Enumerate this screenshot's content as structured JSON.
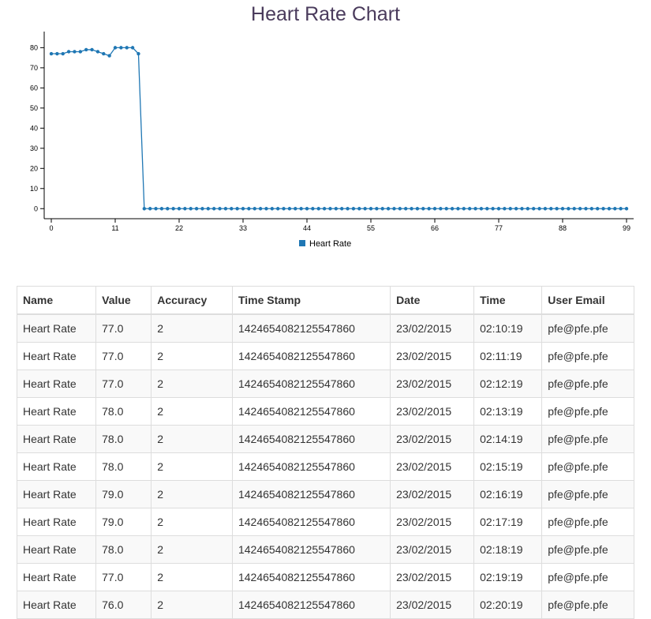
{
  "chart_data": {
    "type": "line",
    "title": "Heart Rate Chart",
    "xlabel": "",
    "ylabel": "",
    "xlim": [
      0,
      99
    ],
    "ylim": [
      -5,
      88
    ],
    "x_ticks": [
      0,
      11,
      22,
      33,
      44,
      55,
      66,
      77,
      88,
      99
    ],
    "y_ticks": [
      0,
      10,
      20,
      30,
      40,
      50,
      60,
      70,
      80
    ],
    "legend": "bottom-center",
    "grid": false,
    "series_color": "#1f77b4",
    "series": [
      {
        "name": "Heart Rate",
        "values": [
          77,
          77,
          77,
          78,
          78,
          78,
          79,
          79,
          78,
          77,
          76,
          80,
          80,
          80,
          80,
          77,
          0,
          0,
          0,
          0,
          0,
          0,
          0,
          0,
          0,
          0,
          0,
          0,
          0,
          0,
          0,
          0,
          0,
          0,
          0,
          0,
          0,
          0,
          0,
          0,
          0,
          0,
          0,
          0,
          0,
          0,
          0,
          0,
          0,
          0,
          0,
          0,
          0,
          0,
          0,
          0,
          0,
          0,
          0,
          0,
          0,
          0,
          0,
          0,
          0,
          0,
          0,
          0,
          0,
          0,
          0,
          0,
          0,
          0,
          0,
          0,
          0,
          0,
          0,
          0,
          0,
          0,
          0,
          0,
          0,
          0,
          0,
          0,
          0,
          0,
          0,
          0,
          0,
          0,
          0,
          0,
          0,
          0,
          0,
          0
        ]
      }
    ]
  },
  "table": {
    "headers": [
      "Name",
      "Value",
      "Accuracy",
      "Time Stamp",
      "Date",
      "Time",
      "User Email"
    ],
    "rows": [
      [
        "Heart Rate",
        "77.0",
        "2",
        "1424654082125547860",
        "23/02/2015",
        "02:10:19",
        "pfe@pfe.pfe"
      ],
      [
        "Heart Rate",
        "77.0",
        "2",
        "1424654082125547860",
        "23/02/2015",
        "02:11:19",
        "pfe@pfe.pfe"
      ],
      [
        "Heart Rate",
        "77.0",
        "2",
        "1424654082125547860",
        "23/02/2015",
        "02:12:19",
        "pfe@pfe.pfe"
      ],
      [
        "Heart Rate",
        "78.0",
        "2",
        "1424654082125547860",
        "23/02/2015",
        "02:13:19",
        "pfe@pfe.pfe"
      ],
      [
        "Heart Rate",
        "78.0",
        "2",
        "1424654082125547860",
        "23/02/2015",
        "02:14:19",
        "pfe@pfe.pfe"
      ],
      [
        "Heart Rate",
        "78.0",
        "2",
        "1424654082125547860",
        "23/02/2015",
        "02:15:19",
        "pfe@pfe.pfe"
      ],
      [
        "Heart Rate",
        "79.0",
        "2",
        "1424654082125547860",
        "23/02/2015",
        "02:16:19",
        "pfe@pfe.pfe"
      ],
      [
        "Heart Rate",
        "79.0",
        "2",
        "1424654082125547860",
        "23/02/2015",
        "02:17:19",
        "pfe@pfe.pfe"
      ],
      [
        "Heart Rate",
        "78.0",
        "2",
        "1424654082125547860",
        "23/02/2015",
        "02:18:19",
        "pfe@pfe.pfe"
      ],
      [
        "Heart Rate",
        "77.0",
        "2",
        "1424654082125547860",
        "23/02/2015",
        "02:19:19",
        "pfe@pfe.pfe"
      ],
      [
        "Heart Rate",
        "76.0",
        "2",
        "1424654082125547860",
        "23/02/2015",
        "02:20:19",
        "pfe@pfe.pfe"
      ]
    ]
  }
}
